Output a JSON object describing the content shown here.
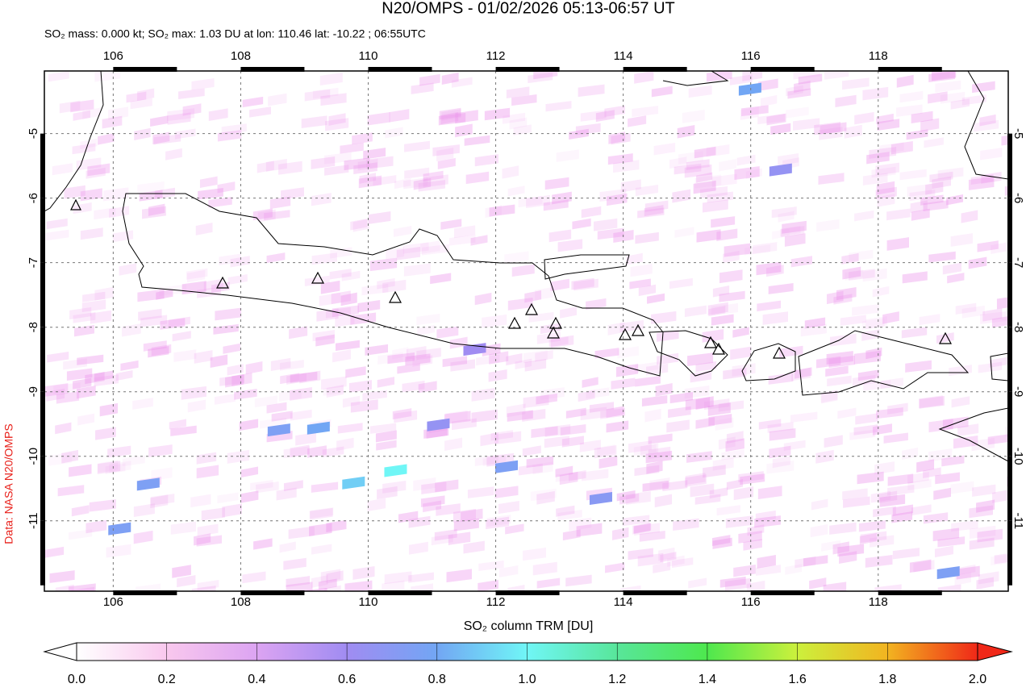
{
  "title": "N20/OMPS - 01/02/2026 05:13-06:57 UT",
  "subtitle": "SO₂ mass: 0.000 kt; SO₂ max: 1.03 DU at lon: 110.46 lat: -10.22 ; 06:55UTC",
  "credit": "Data: NASA N20/OMPS",
  "xlim": [
    104.92,
    120.04
  ],
  "ylim": [
    -12.09,
    -4.03
  ],
  "xticks": [
    106,
    108,
    110,
    112,
    114,
    116,
    118
  ],
  "yticks": [
    -5,
    -6,
    -7,
    -8,
    -9,
    -10,
    -11
  ],
  "grid": true,
  "colorbar": {
    "label": "SO₂ column TRM [DU]",
    "lim": [
      0,
      2
    ],
    "ticks": [
      {
        "value": 0,
        "label": "0.0"
      },
      {
        "value": 0.2,
        "label": "0.2"
      },
      {
        "value": 0.4,
        "label": "0.4"
      },
      {
        "value": 0.6,
        "label": "0.6"
      },
      {
        "value": 0.8,
        "label": "0.8"
      },
      {
        "value": 1,
        "label": "1.0"
      },
      {
        "value": 1.2,
        "label": "1.2"
      },
      {
        "value": 1.4,
        "label": "1.4"
      },
      {
        "value": 1.6,
        "label": "1.6"
      },
      {
        "value": 1.8,
        "label": "1.8"
      },
      {
        "value": 2,
        "label": "2.0"
      }
    ],
    "colors": [
      "#ffffff",
      "#f9c8ee",
      "#dca4f2",
      "#a08cf2",
      "#72a6f4",
      "#70f6f6",
      "#58e69a",
      "#4ee84e",
      "#ccf03c",
      "#f2b420",
      "#f02818"
    ]
  },
  "pixels": [
    {
      "lon": 110.43,
      "lat": -10.21,
      "value": 1.0
    },
    {
      "lon": 109.77,
      "lat": -10.4,
      "value": 0.9
    },
    {
      "lon": 109.22,
      "lat": -9.55,
      "value": 0.8
    },
    {
      "lon": 108.6,
      "lat": -9.58,
      "value": 0.75
    },
    {
      "lon": 112.17,
      "lat": -10.15,
      "value": 0.75
    },
    {
      "lon": 113.65,
      "lat": -10.64,
      "value": 0.7
    },
    {
      "lon": 106.1,
      "lat": -11.11,
      "value": 0.75
    },
    {
      "lon": 106.55,
      "lat": -10.42,
      "value": 0.75
    },
    {
      "lon": 115.99,
      "lat": -4.3,
      "value": 0.8
    },
    {
      "lon": 111.1,
      "lat": -9.5,
      "value": 0.65
    },
    {
      "lon": 111.67,
      "lat": -8.33,
      "value": 0.6
    },
    {
      "lon": 119.1,
      "lat": -11.79,
      "value": 0.75
    },
    {
      "lon": 116.47,
      "lat": -5.55,
      "value": 0.65
    }
  ]
}
